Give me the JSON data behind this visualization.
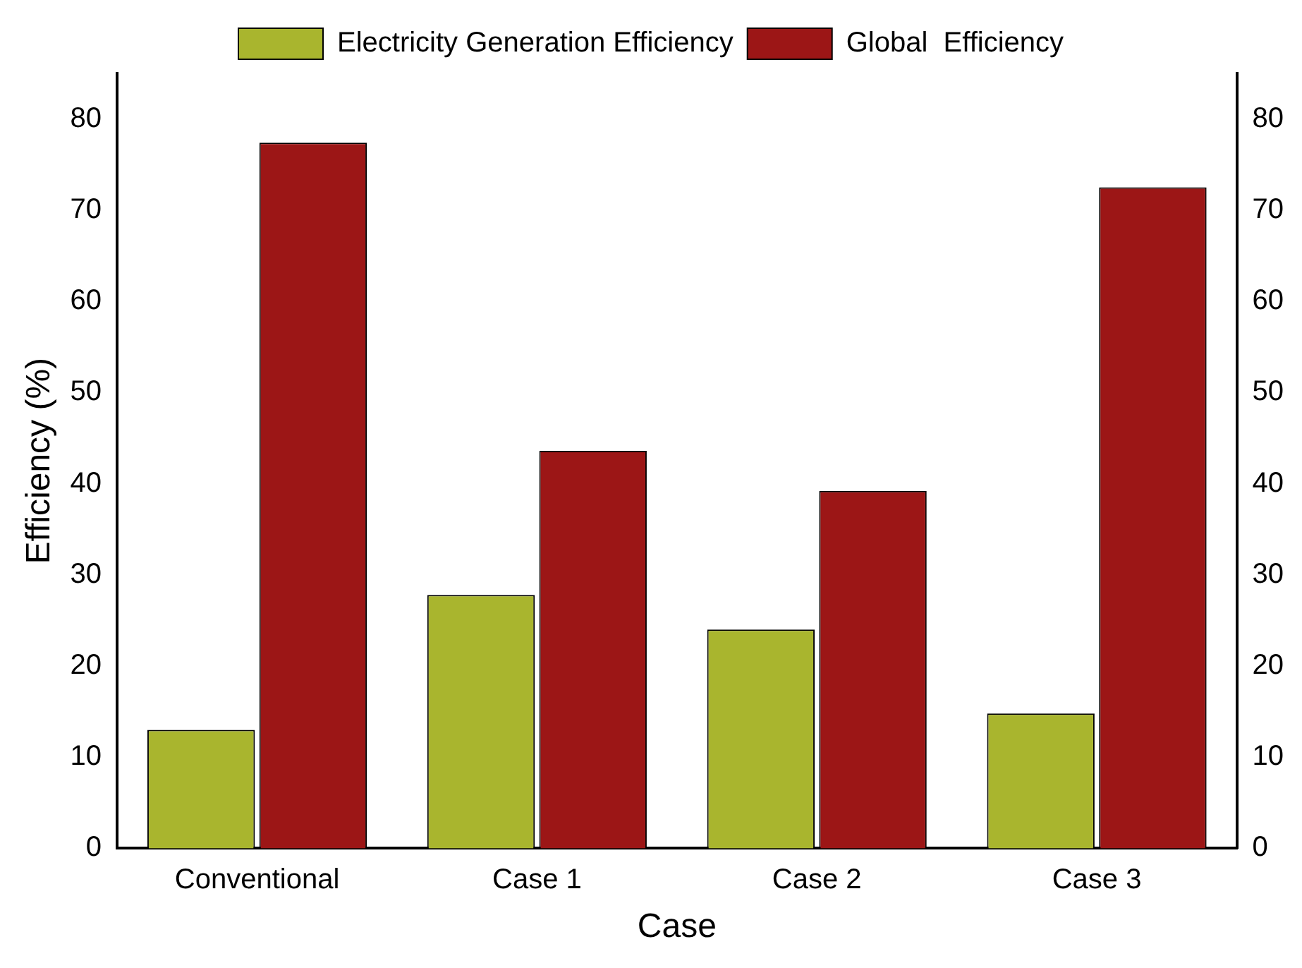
{
  "chart_data": {
    "type": "bar",
    "xlabel": "Case",
    "ylabel": "Efficiency (%)",
    "categories": [
      "Conventional",
      "Case 1",
      "Case 2",
      "Case 3"
    ],
    "series": [
      {
        "name": "Electricity Generation Efficiency",
        "color": "#a9b52e",
        "values": [
          13.0,
          27.8,
          24.0,
          14.8
        ]
      },
      {
        "name": "Global  Efficiency",
        "color": "#9c1616",
        "values": [
          77.4,
          43.6,
          39.2,
          72.5
        ]
      }
    ],
    "ylim": [
      0,
      85
    ],
    "yticks": [
      0,
      10,
      20,
      30,
      40,
      50,
      60,
      70,
      80
    ],
    "y2lim": [
      0,
      85
    ],
    "y2ticks": [
      0,
      10,
      20,
      30,
      40,
      50,
      60,
      70,
      80
    ],
    "grid": false,
    "legend": "top"
  }
}
